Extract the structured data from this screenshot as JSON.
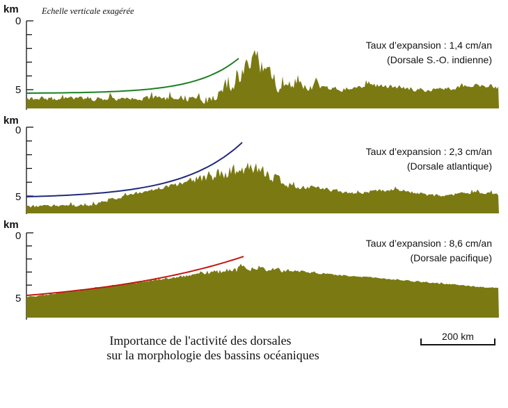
{
  "figure": {
    "note": "Echelle verticale exagérée",
    "caption_line1": "Importance de l'activité des dorsales",
    "caption_line2": "sur la morphologie des bassins océaniques",
    "scale_label": "200 km",
    "axis_unit": "km",
    "tick_top": "0",
    "tick_bottom": "5",
    "terrain_color": "#7b7a12"
  },
  "panels": [
    {
      "rate_text": "Taux d’expansion : 1,4 cm/an",
      "ridge_name": "(Dorsale S.-O. indienne)",
      "curve_color": "#1b7f22",
      "ridge_type": "slow"
    },
    {
      "rate_text": "Taux d’expansion : 2,3 cm/an",
      "ridge_name": "(Dorsale atlantique)",
      "curve_color": "#1f2a7a",
      "ridge_type": "medium"
    },
    {
      "rate_text": "Taux d’expansion : 8,6 cm/an",
      "ridge_name": "(Dorsale pacifique)",
      "curve_color": "#c2160e",
      "ridge_type": "fast"
    }
  ]
}
